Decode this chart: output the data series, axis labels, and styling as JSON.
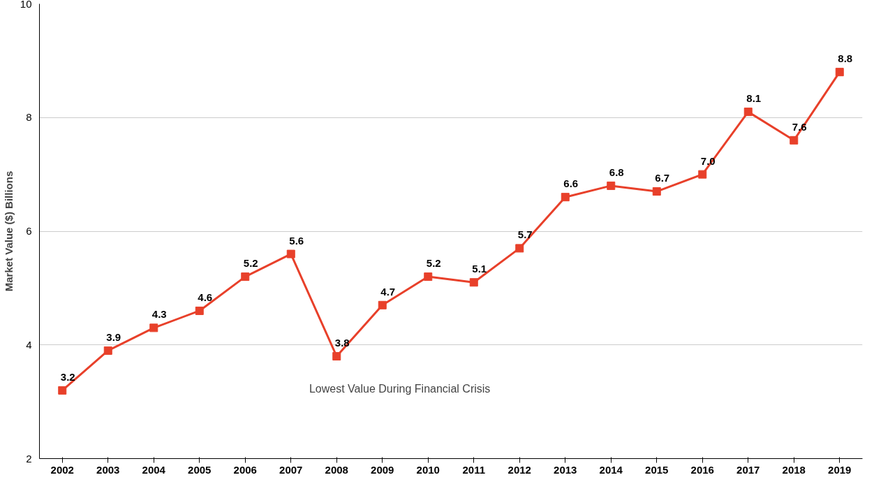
{
  "chart_data": {
    "type": "line",
    "ylabel": "Market Value ($) Billions",
    "categories": [
      "2002",
      "2003",
      "2004",
      "2005",
      "2006",
      "2007",
      "2008",
      "2009",
      "2010",
      "2011",
      "2012",
      "2013",
      "2014",
      "2015",
      "2016",
      "2017",
      "2018",
      "2019"
    ],
    "series": [
      {
        "color": "#e8402a",
        "values": [
          3.2,
          3.9,
          4.3,
          4.6,
          5.2,
          5.6,
          3.8,
          4.7,
          5.2,
          5.1,
          5.7,
          6.6,
          6.8,
          6.7,
          7.0,
          8.1,
          7.6,
          8.8
        ]
      }
    ],
    "value_labels": [
      "3.2",
      "3.9",
      "4.3",
      "4.6",
      "5.2",
      "5.6",
      "3.8",
      "4.7",
      "5.2",
      "5.1",
      "5.7",
      "6.6",
      "6.8",
      "6.7",
      "7.0",
      "8.1",
      "7.6",
      "8.8"
    ],
    "ylim": [
      2,
      10
    ],
    "yticks": [
      2,
      4,
      6,
      8,
      10
    ],
    "grid": "y",
    "marker": "square",
    "line_style": "solid",
    "annotations": [
      "Lowest Value During Financial Crisis"
    ]
  }
}
